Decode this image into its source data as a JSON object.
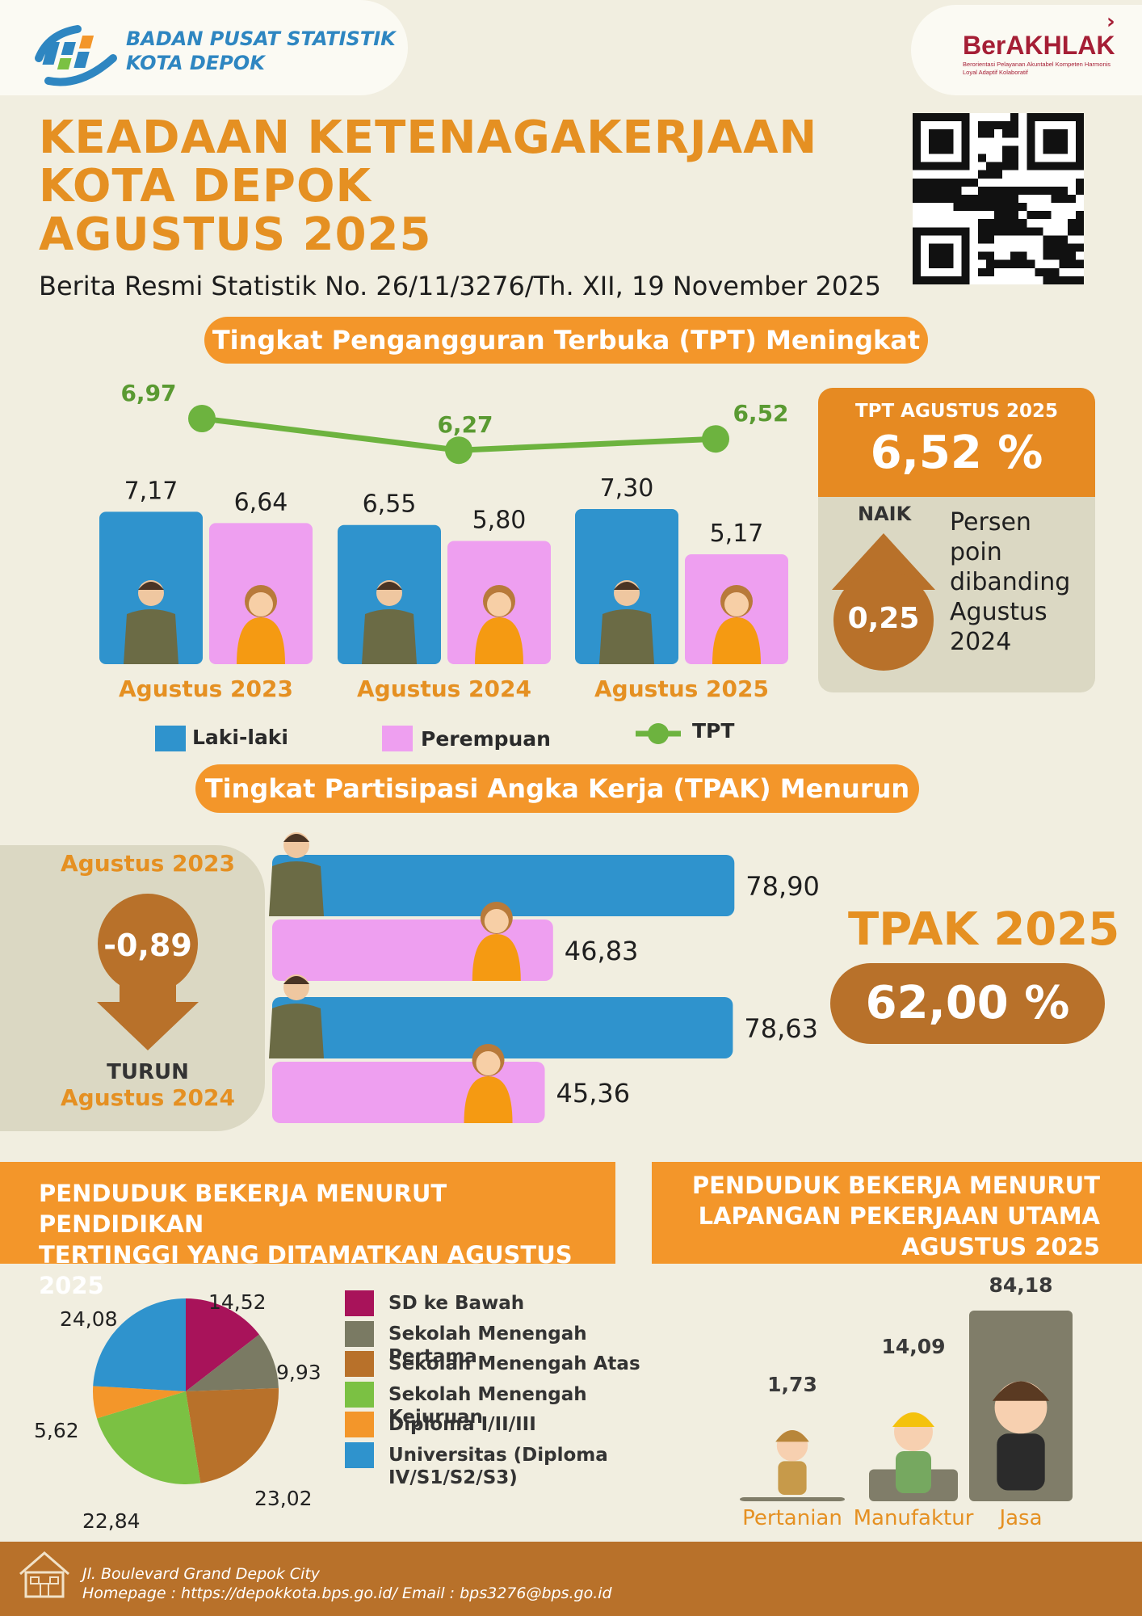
{
  "header": {
    "org_line1": "BADAN PUSAT STATISTIK",
    "org_line2": "KOTA DEPOK",
    "brand_name": "BerAKHLAK",
    "brand_tagline": "Berorientasi Pelayanan Akuntabel Kompeten Harmonis Loyal Adaptif Kolaboratif",
    "title_lines": [
      "KEADAAN KETENAGAKERJAAN",
      "KOTA DEPOK",
      "AGUSTUS 2025"
    ],
    "subtitle": "Berita Resmi Statistik No. 26/11/3276/Th. XII, 19 November 2025"
  },
  "tpt_section": {
    "heading": "Tingkat Pengangguran Terbuka (TPT) Meningkat",
    "panel_label": "TPT AGUSTUS 2025",
    "panel_value": "6,52 %",
    "naik_label": "NAIK",
    "naik_value": "0,25",
    "naik_desc": "Persen poin dibanding Agustus 2024",
    "legend": {
      "male": "Laki-laki",
      "female": "Perempuan",
      "tpt": "TPT"
    }
  },
  "tpak_section": {
    "heading": "Tingkat Partisipasi Angka Kerja (TPAK) Menurun",
    "from_label": "Agustus 2023",
    "change_value": "-0,89",
    "turun_label": "TURUN",
    "to_label": "Agustus 2024",
    "total_title": "TPAK 2025",
    "total_value": "62,00 %"
  },
  "education_section": {
    "heading_line1": "PENDUDUK BEKERJA MENURUT PENDIDIKAN",
    "heading_line2": "TERTINGGI YANG DITAMATKAN AGUSTUS 2025"
  },
  "industry_section": {
    "heading_line1": "PENDUDUK BEKERJA MENURUT",
    "heading_line2": "LAPANGAN PEKERJAAN  UTAMA",
    "heading_line3": "AGUSTUS 2025"
  },
  "footer": {
    "address": "Jl. Boulevard Grand Depok City",
    "contact": "Homepage : https://depokkota.bps.go.id/ Email : bps3276@bps.go.id"
  },
  "colors": {
    "orange": "#f3962a",
    "brown": "#b8712a",
    "male_blue": "#2f93cd",
    "female_pink": "#ee9ff0",
    "tpt_green": "#6db33f",
    "panel_beige": "#dbd8c3"
  },
  "chart_data": [
    {
      "type": "bar",
      "categories": [
        "Agustus 2023",
        "Agustus 2024",
        "Agustus 2025"
      ],
      "series": [
        {
          "name": "Laki-laki",
          "values": [
            7.17,
            6.55,
            7.3
          ],
          "labels": [
            "7,17",
            "6,55",
            "7,30"
          ]
        },
        {
          "name": "Perempuan",
          "values": [
            6.64,
            5.8,
            5.17
          ],
          "labels": [
            "6,64",
            "5,80",
            "5,17"
          ]
        }
      ],
      "line_series": {
        "name": "TPT",
        "values": [
          6.97,
          6.27,
          6.52
        ],
        "labels": [
          "6,97",
          "6,27",
          "6,52"
        ]
      }
    },
    {
      "type": "bar",
      "orientation": "horizontal",
      "groups": [
        {
          "male": 78.9,
          "female": 46.83,
          "male_label": "78,90",
          "female_label": "46,83"
        },
        {
          "male": 78.63,
          "female": 45.36,
          "male_label": "78,63",
          "female_label": "45,36"
        }
      ]
    },
    {
      "type": "pie",
      "slices": [
        {
          "name": "SD ke Bawah",
          "value": 14.52,
          "label": "14,52",
          "color": "#a8135a"
        },
        {
          "name": "Sekolah Menengah Pertama",
          "value": 9.93,
          "label": "9,93",
          "color": "#7a7a63"
        },
        {
          "name": "Sekolah Menengah Atas",
          "value": 23.02,
          "label": "23,02",
          "color": "#b8712a"
        },
        {
          "name": "Sekolah Menengah Kejuruan",
          "value": 22.84,
          "label": "22,84",
          "color": "#7bc143"
        },
        {
          "name": "Diploma I/II/III",
          "value": 5.62,
          "label": "5,62",
          "color": "#f3962a"
        },
        {
          "name": "Universitas (Diploma IV/S1/S2/S3)",
          "value": 24.08,
          "label": "24,08",
          "color": "#2f93cd"
        }
      ]
    },
    {
      "type": "bar",
      "categories": [
        "Pertanian",
        "Manufaktur",
        "Jasa"
      ],
      "values": [
        1.73,
        14.09,
        84.18
      ],
      "labels": [
        "1,73",
        "14,09",
        "84,18"
      ]
    }
  ]
}
